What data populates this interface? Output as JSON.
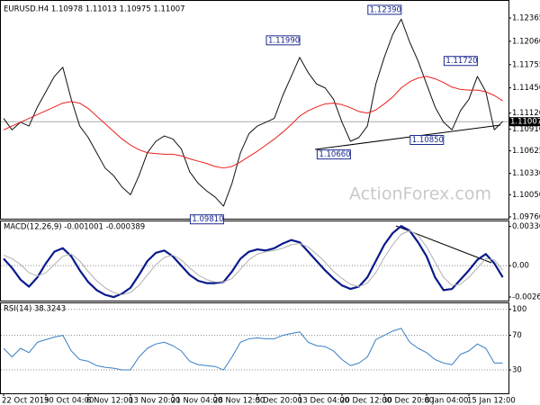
{
  "chart_data": [
    {
      "type": "line",
      "title": "EURUSD.H4  1.10978 1.11013 1.10975 1.11007",
      "watermark": "ActionForex.com",
      "series": [
        {
          "color": "#111111",
          "values": [
            1.1105,
            1.109,
            1.11,
            1.1095,
            1.112,
            1.114,
            1.116,
            1.1172,
            1.113,
            1.1095,
            1.108,
            1.106,
            1.104,
            1.103,
            1.1015,
            1.1005,
            1.103,
            1.106,
            1.1075,
            1.1082,
            1.1078,
            1.1065,
            1.1035,
            1.102,
            1.101,
            1.1002,
            1.099,
            1.102,
            1.106,
            1.1085,
            1.1095,
            1.11,
            1.1105,
            1.1135,
            1.116,
            1.1185,
            1.1165,
            1.115,
            1.1145,
            1.113,
            1.11,
            1.1075,
            1.108,
            1.1095,
            1.115,
            1.1185,
            1.1215,
            1.1235,
            1.1205,
            1.118,
            1.115,
            1.112,
            1.11,
            1.109,
            1.1115,
            1.113,
            1.116,
            1.114,
            1.109,
            1.1101
          ]
        },
        {
          "color": "#e8201c",
          "values": [
            1.109,
            1.1095,
            1.11,
            1.1105,
            1.111,
            1.1115,
            1.112,
            1.1125,
            1.1127,
            1.1125,
            1.1118,
            1.1108,
            1.1098,
            1.1088,
            1.1078,
            1.107,
            1.1064,
            1.106,
            1.1059,
            1.1058,
            1.1058,
            1.1056,
            1.1052,
            1.1049,
            1.1046,
            1.1042,
            1.104,
            1.1042,
            1.1048,
            1.1055,
            1.1062,
            1.107,
            1.1078,
            1.1087,
            1.1097,
            1.1108,
            1.1115,
            1.112,
            1.1124,
            1.1125,
            1.1123,
            1.1119,
            1.1114,
            1.1112,
            1.1116,
            1.1124,
            1.1133,
            1.1145,
            1.1153,
            1.1158,
            1.116,
            1.1157,
            1.1152,
            1.1146,
            1.1143,
            1.1142,
            1.1142,
            1.114,
            1.1135,
            1.1128
          ]
        }
      ],
      "current_price": 1.11007,
      "annotations": [
        {
          "text": "1.12390",
          "value": 1.1239,
          "index": 47
        },
        {
          "text": "1.11990",
          "value": 1.1199,
          "index": 35
        },
        {
          "text": "1.11720",
          "value": 1.1172,
          "index": 56
        },
        {
          "text": "1.10660",
          "value": 1.1066,
          "index": 41
        },
        {
          "text": "1.10850",
          "value": 1.1085,
          "index": 52
        },
        {
          "text": "1.09810",
          "value": 1.0981,
          "index": 26
        }
      ],
      "ylim": [
        1.09736,
        1.12554
      ],
      "yticks": [
        1.12365,
        {
          "value": 1.1206,
          "label": "1.12060"
        },
        1.11755,
        {
          "value": 1.1145,
          "label": "1.11450"
        },
        {
          "value": 1.1112,
          "label": "1.11120"
        },
        {
          "value": 1.1091,
          "label": "1.10910"
        },
        1.10625,
        {
          "value": 1.1033,
          "label": "1.10330"
        },
        {
          "value": 1.1005,
          "label": "1.10050"
        },
        {
          "value": 1.0976,
          "label": "1.09760"
        }
      ]
    },
    {
      "type": "line",
      "title": "MACD(12,26,9) -0.001001 -0.000389",
      "series": [
        {
          "color": "#0a1a8c",
          "values": [
            0.0006,
            -0.0002,
            -0.0012,
            -0.0018,
            -0.001,
            0.0002,
            0.0012,
            0.0015,
            0.0008,
            -0.0004,
            -0.0014,
            -0.0021,
            -0.0025,
            -0.0027,
            -0.0024,
            -0.0019,
            -0.0008,
            0.0004,
            0.0011,
            0.0013,
            0.0008,
            0,
            -0.0008,
            -0.0013,
            -0.0015,
            -0.0015,
            -0.0014,
            -0.0005,
            0.0006,
            0.0012,
            0.0014,
            0.0013,
            0.0015,
            0.0019,
            0.0022,
            0.002,
            0.0012,
            0.0004,
            -0.0004,
            -0.0011,
            -0.0017,
            -0.002,
            -0.0018,
            -0.001,
            0.0004,
            0.0018,
            0.0028,
            0.0034,
            0.003,
            0.002,
            0.0008,
            -0.001,
            -0.0021,
            -0.002,
            -0.0012,
            -0.0004,
            0.0005,
            0.001,
            0.0002,
            -0.001
          ]
        },
        {
          "color": "#b0b0b0",
          "values": [
            0.0009,
            0.0006,
            0.0001,
            -0.0006,
            -0.0009,
            -0.0006,
            0.0001,
            0.0008,
            0.001,
            0.0004,
            -0.0005,
            -0.0013,
            -0.0019,
            -0.0023,
            -0.0025,
            -0.0023,
            -0.0017,
            -0.0008,
            0.0001,
            0.0007,
            0.0009,
            0.0005,
            -0.0002,
            -0.0008,
            -0.0012,
            -0.0014,
            -0.0014,
            -0.0011,
            -0.0003,
            0.0005,
            0.001,
            0.0012,
            0.0013,
            0.0015,
            0.0018,
            0.0019,
            0.0016,
            0.001,
            0.0003,
            -0.0005,
            -0.0011,
            -0.0016,
            -0.0018,
            -0.0015,
            -0.0006,
            0.0007,
            0.0018,
            0.0027,
            0.003,
            0.0026,
            0.0016,
            0.0003,
            -0.001,
            -0.0017,
            -0.0016,
            -0.001,
            -0.0002,
            0.0006,
            0.0005,
            -0.0004
          ]
        }
      ],
      "ylim": [
        -0.003,
        0.0038
      ],
      "yticks": [
        0.003362,
        {
          "value": 0,
          "label": "0.00"
        },
        -0.002691
      ]
    },
    {
      "type": "line",
      "title": "RSI(14) 38.3243",
      "categories": [
        "22 Oct 2019",
        null,
        null,
        null,
        null,
        "30 Oct 04:00",
        null,
        null,
        null,
        null,
        "6 Nov 12:00",
        null,
        null,
        null,
        null,
        "13 Nov 20:00",
        null,
        null,
        null,
        null,
        "21 Nov 04:00",
        null,
        null,
        null,
        null,
        "28 Nov 12:00",
        null,
        null,
        null,
        null,
        "5 Dec 20:00",
        null,
        null,
        null,
        null,
        "13 Dec 04:00",
        null,
        null,
        null,
        null,
        "20 Dec 12:00",
        null,
        null,
        null,
        null,
        "30 Dec 20:00",
        null,
        null,
        null,
        null,
        "8 Jan 04:00",
        null,
        null,
        null,
        null,
        "15 Jan 12:00",
        null,
        null,
        null,
        null
      ],
      "series": [
        {
          "color": "#3a7fc4",
          "values": [
            55,
            45,
            55,
            50,
            62,
            65,
            68,
            70,
            52,
            42,
            40,
            35,
            33,
            32,
            30,
            30,
            45,
            55,
            60,
            62,
            58,
            52,
            40,
            36,
            35,
            34,
            30,
            45,
            62,
            66,
            67,
            66,
            66,
            70,
            72,
            74,
            62,
            58,
            57,
            52,
            42,
            35,
            38,
            45,
            65,
            70,
            75,
            78,
            62,
            55,
            50,
            42,
            38,
            36,
            48,
            52,
            60,
            55,
            38,
            38
          ]
        }
      ],
      "ylim": [
        3,
        107
      ],
      "yticks": [
        30,
        70,
        100
      ],
      "grid": true
    }
  ]
}
